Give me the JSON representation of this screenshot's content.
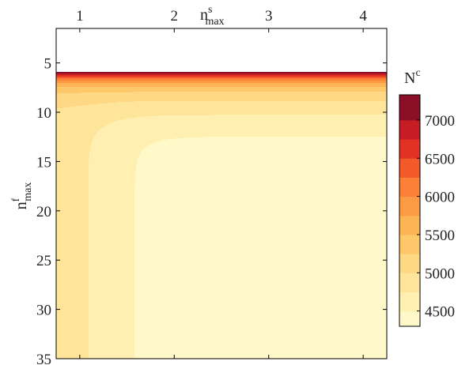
{
  "chart_data": {
    "type": "heatmap",
    "plot_style": "filled-contour",
    "x_axis": {
      "label_base": "n",
      "label_sup": "s",
      "label_sub": "max",
      "position": "top",
      "range": [
        0.75,
        4.25
      ],
      "ticks": [
        1,
        2,
        3,
        4
      ],
      "tick_labels": [
        "1",
        "2",
        "3",
        "4"
      ]
    },
    "y_axis": {
      "label_base": "n",
      "label_sup": "f",
      "label_sub": "max",
      "inverted": true,
      "range": [
        1.5,
        35
      ],
      "ticks": [
        5,
        10,
        15,
        20,
        25,
        30,
        35
      ],
      "tick_labels": [
        "5",
        "10",
        "15",
        "20",
        "25",
        "30",
        "35"
      ]
    },
    "data_y_start": 5.9,
    "colorbar": {
      "label_base": "N",
      "label_sup": "c",
      "range": [
        4300,
        7330
      ],
      "ticks": [
        4500,
        5000,
        5500,
        6000,
        6500,
        7000
      ],
      "tick_labels": [
        "4500",
        "5000",
        "5500",
        "6000",
        "6500",
        "7000"
      ]
    },
    "levels": [
      {
        "max": 4500,
        "color": "#fff8c8"
      },
      {
        "max": 4750,
        "color": "#ffefb0"
      },
      {
        "max": 5000,
        "color": "#fee59a"
      },
      {
        "max": 5250,
        "color": "#fed884"
      },
      {
        "max": 5500,
        "color": "#fec86a"
      },
      {
        "max": 5750,
        "color": "#fdb454"
      },
      {
        "max": 6000,
        "color": "#fd9b44"
      },
      {
        "max": 6250,
        "color": "#fc8037"
      },
      {
        "max": 6500,
        "color": "#f4592a"
      },
      {
        "max": 6750,
        "color": "#e33224"
      },
      {
        "max": 7000,
        "color": "#c61d25"
      },
      {
        "max": 7330,
        "color": "#8c0f28"
      }
    ]
  }
}
